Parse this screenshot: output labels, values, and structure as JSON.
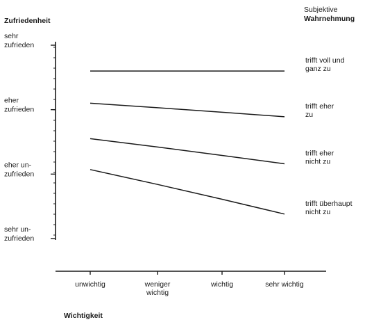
{
  "chart_data": {
    "type": "line",
    "title": "",
    "xlabel": "Wichtigkeit",
    "ylabel": "Zufriedenheit",
    "legend_title": [
      "Subjektive",
      "Wahrnehmung"
    ],
    "categories": [
      [
        "unwichtig"
      ],
      [
        "weniger",
        "wichtig"
      ],
      [
        "wichtig"
      ],
      [
        "sehr wichtig"
      ]
    ],
    "y_levels": [
      {
        "value": 4,
        "label": [
          "sehr",
          "zufrieden"
        ]
      },
      {
        "value": 3,
        "label": [
          "eher",
          "zufrieden"
        ]
      },
      {
        "value": 2,
        "label": [
          "eher un-",
          "zufrieden"
        ]
      },
      {
        "value": 1,
        "label": [
          "sehr un-",
          "zufrieden"
        ]
      }
    ],
    "ylim": [
      1,
      4
    ],
    "series": [
      {
        "label": [
          "trifft voll und",
          "ganz zu"
        ],
        "values": [
          3.6,
          3.6,
          3.6,
          3.6
        ]
      },
      {
        "label": [
          "trifft eher",
          "zu"
        ],
        "values": [
          3.1,
          3.03,
          2.96,
          2.89
        ]
      },
      {
        "label": [
          "trifft eher",
          "nicht zu"
        ],
        "values": [
          2.55,
          2.42,
          2.29,
          2.16
        ]
      },
      {
        "label": [
          "trifft überhaupt",
          "nicht zu"
        ],
        "values": [
          2.07,
          1.84,
          1.61,
          1.38
        ]
      }
    ],
    "legend_position": "right",
    "grid": false
  },
  "colors": {
    "ink": "#1a1a1a"
  }
}
